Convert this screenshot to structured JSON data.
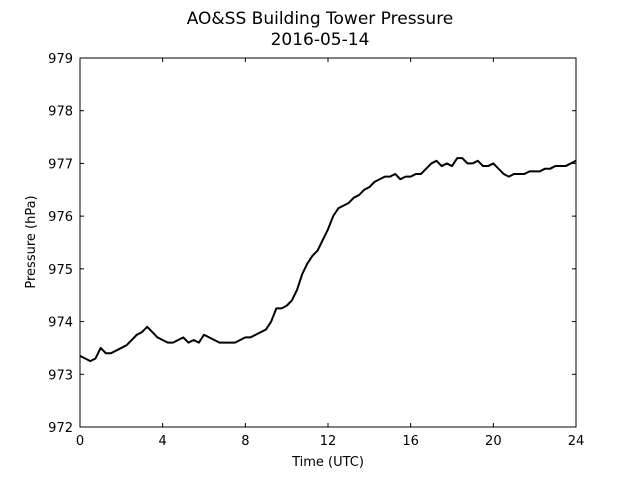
{
  "chart_data": {
    "type": "line",
    "title": "AO&SS Building Tower Pressure",
    "subtitle": "2016-05-14",
    "x_label": "Time (UTC)",
    "y_label": "Pressure (hPa)",
    "x": [
      0,
      0.25,
      0.5,
      0.75,
      1,
      1.25,
      1.5,
      1.75,
      2,
      2.25,
      2.5,
      2.75,
      3,
      3.25,
      3.5,
      3.75,
      4,
      4.25,
      4.5,
      4.75,
      5,
      5.25,
      5.5,
      5.75,
      6,
      6.25,
      6.5,
      6.75,
      7,
      7.25,
      7.5,
      7.75,
      8,
      8.25,
      8.5,
      8.75,
      9,
      9.25,
      9.5,
      9.75,
      10,
      10.25,
      10.5,
      10.75,
      11,
      11.25,
      11.5,
      11.75,
      12,
      12.25,
      12.5,
      12.75,
      13,
      13.25,
      13.5,
      13.75,
      14,
      14.25,
      14.5,
      14.75,
      15,
      15.25,
      15.5,
      15.75,
      16,
      16.25,
      16.5,
      16.75,
      17,
      17.25,
      17.5,
      17.75,
      18,
      18.25,
      18.5,
      18.75,
      19,
      19.25,
      19.5,
      19.75,
      20,
      20.25,
      20.5,
      20.75,
      21,
      21.25,
      21.5,
      21.75,
      22,
      22.25,
      22.5,
      22.75,
      23,
      23.25,
      23.5,
      23.75,
      24
    ],
    "series": [
      {
        "name": "Pressure",
        "color": "#000000",
        "values": [
          973.35,
          973.3,
          973.25,
          973.3,
          973.5,
          973.4,
          973.4,
          973.45,
          973.5,
          973.55,
          973.65,
          973.75,
          973.8,
          973.9,
          973.8,
          973.7,
          973.65,
          973.6,
          973.6,
          973.65,
          973.7,
          973.6,
          973.65,
          973.6,
          973.75,
          973.7,
          973.65,
          973.6,
          973.6,
          973.6,
          973.6,
          973.65,
          973.7,
          973.7,
          973.75,
          973.8,
          973.85,
          974.0,
          974.25,
          974.25,
          974.3,
          974.4,
          974.6,
          974.9,
          975.1,
          975.25,
          975.35,
          975.55,
          975.75,
          976.0,
          976.15,
          976.2,
          976.25,
          976.35,
          976.4,
          976.5,
          976.55,
          976.65,
          976.7,
          976.75,
          976.75,
          976.8,
          976.7,
          976.75,
          976.75,
          976.8,
          976.8,
          976.9,
          977.0,
          977.05,
          976.95,
          977.0,
          976.95,
          977.1,
          977.1,
          977.0,
          977.0,
          977.05,
          976.95,
          976.95,
          977.0,
          976.9,
          976.8,
          976.75,
          976.8,
          976.8,
          976.8,
          976.85,
          976.85,
          976.85,
          976.9,
          976.9,
          976.95,
          976.95,
          976.95,
          977.0,
          977.05
        ]
      }
    ],
    "xlim": [
      0,
      24
    ],
    "xticks": [
      0,
      4,
      8,
      12,
      16,
      20,
      24
    ],
    "ylim": [
      972,
      979
    ],
    "yticks": [
      972,
      973,
      974,
      975,
      976,
      977,
      978,
      979
    ],
    "grid": false
  }
}
